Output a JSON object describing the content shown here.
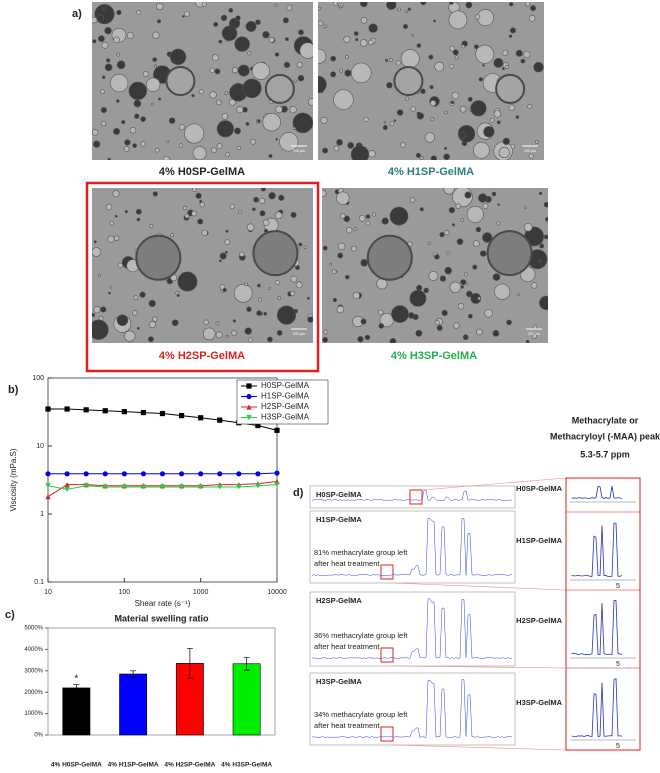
{
  "panel_labels": [
    "a)",
    "b)",
    "c)",
    "d)"
  ],
  "micrographs": [
    {
      "caption": "4% H0SP-GelMA",
      "color": "#222222",
      "scale_bar": "200 µm"
    },
    {
      "caption": "4% H1SP-GelMA",
      "color": "#2e7b7b",
      "scale_bar": "200 µm"
    },
    {
      "caption": "4% H2SP-GelMA",
      "color": "#e02020",
      "scale_bar": "200 µm"
    },
    {
      "caption": "4% H3SP-GelMA",
      "color": "#22b04b",
      "scale_bar": "200 µm"
    }
  ],
  "chart_data": [
    {
      "type": "line",
      "xlabel": "Shear rate (s⁻¹)",
      "ylabel": "Viscosity (mPa.S)",
      "x": [
        10,
        17.8,
        31.6,
        56.2,
        100,
        178,
        316,
        562,
        1000,
        1778,
        3162,
        5623,
        10000
      ],
      "series": [
        {
          "name": "H0SP-GelMA",
          "color": "#000000",
          "marker": "square",
          "values": [
            35,
            35,
            34,
            33,
            32,
            31,
            30,
            28,
            26,
            24,
            22,
            20,
            17
          ]
        },
        {
          "name": "H1SP-GelMA",
          "color": "#0000ee",
          "marker": "circle",
          "values": [
            3.9,
            3.9,
            3.9,
            3.9,
            3.9,
            3.9,
            3.9,
            3.9,
            3.9,
            3.9,
            3.9,
            3.9,
            4.0
          ]
        },
        {
          "name": "H2SP-GelMA",
          "color": "#e02020",
          "marker": "triangle",
          "values": [
            1.8,
            2.7,
            2.7,
            2.6,
            2.6,
            2.6,
            2.6,
            2.6,
            2.6,
            2.7,
            2.7,
            2.8,
            3.0
          ]
        },
        {
          "name": "H3SP-GelMA",
          "color": "#22cc44",
          "marker": "triangle-down",
          "values": [
            2.6,
            2.3,
            2.6,
            2.5,
            2.5,
            2.5,
            2.5,
            2.5,
            2.5,
            2.5,
            2.5,
            2.6,
            2.7
          ]
        }
      ],
      "xlim": [
        10,
        10000
      ],
      "xticks": [
        10,
        100,
        1000,
        10000
      ],
      "ylim": [
        0.1,
        100
      ],
      "yticks": [
        0.1,
        1,
        10,
        100
      ],
      "log_x": true,
      "log_y": true,
      "legend": "top-right"
    },
    {
      "type": "bar",
      "title": "Material swelling ratio",
      "categories": [
        "4% H0SP-GelMA",
        "4% H1SP-GelMA",
        "4% H2SP-GelMA",
        "4% H3SP-GelMA"
      ],
      "values": [
        2200,
        2850,
        3350,
        3330
      ],
      "errors": [
        150,
        150,
        700,
        300
      ],
      "colors": [
        "#000000",
        "#0000ff",
        "#ff0000",
        "#00ee00"
      ],
      "annotation": "*",
      "ylim": [
        0,
        5000
      ],
      "yticks": [
        {
          "value": 0,
          "label": "0%"
        },
        {
          "value": 1000,
          "label": "1000%"
        },
        {
          "value": 2000,
          "label": "2000%"
        },
        {
          "value": 3000,
          "label": "3000%"
        },
        {
          "value": 4000,
          "label": "4000%"
        },
        {
          "value": 5000,
          "label": "5000%"
        }
      ]
    }
  ],
  "nmr": {
    "header": [
      "Methacrylate or",
      "Methacryloyl  (-MAA) peak",
      "5.3-5.7 ppm"
    ],
    "spectra": [
      {
        "name": "H0SP-GelMA"
      },
      {
        "name": "H1SP-GelMA",
        "note": [
          "81% methacrylate group left",
          "after heat treatment"
        ]
      },
      {
        "name": "H2SP-GelMA",
        "note": [
          "36% methacrylate group left",
          "after heat treatment"
        ]
      },
      {
        "name": "H3SP-GelMA",
        "note": [
          "34% methacrylate group left",
          "after heat treatment"
        ]
      }
    ],
    "zoom_labels": [
      "H0SP-GelMA",
      "H1SP-GelMA",
      "H2SP-GelMA",
      "H3SP-GelMA"
    ],
    "zoom_tick": "5"
  }
}
